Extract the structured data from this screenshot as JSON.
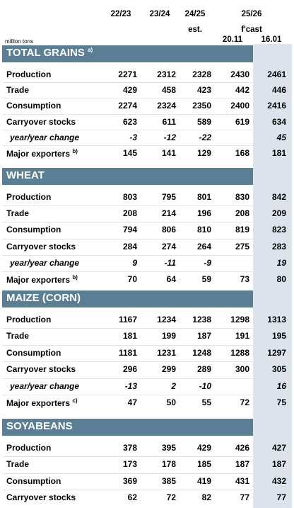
{
  "header": {
    "columns": [
      "22/23",
      "23/24",
      "24/25",
      "25/26"
    ],
    "est": "est.",
    "fcast": "f'cast",
    "dates": [
      "20.11",
      "16.01"
    ],
    "unit": "million tons"
  },
  "sections": [
    {
      "title": "TOTAL GRAINS",
      "note": "a)",
      "rows": [
        {
          "label": "Production",
          "values": [
            "2271",
            "2312",
            "2328",
            "2430",
            "2461"
          ]
        },
        {
          "label": "Trade",
          "values": [
            "429",
            "458",
            "423",
            "442",
            "446"
          ]
        },
        {
          "label": "Consumption",
          "values": [
            "2274",
            "2324",
            "2350",
            "2400",
            "2416"
          ]
        },
        {
          "label": "Carryover stocks",
          "values": [
            "623",
            "611",
            "589",
            "619",
            "634"
          ]
        },
        {
          "label": "year/year change",
          "italic": true,
          "values": [
            "-3",
            "-12",
            "-22",
            "",
            "45"
          ]
        },
        {
          "label": "Major exporters",
          "note": "b)",
          "values": [
            "145",
            "141",
            "129",
            "168",
            "181"
          ]
        }
      ]
    },
    {
      "title": "WHEAT",
      "note": "",
      "rows": [
        {
          "label": "Production",
          "values": [
            "803",
            "795",
            "801",
            "830",
            "842"
          ]
        },
        {
          "label": "Trade",
          "values": [
            "208",
            "214",
            "196",
            "208",
            "209"
          ]
        },
        {
          "label": "Consumption",
          "values": [
            "794",
            "806",
            "810",
            "819",
            "823"
          ]
        },
        {
          "label": "Carryover stocks",
          "values": [
            "284",
            "274",
            "264",
            "275",
            "283"
          ]
        },
        {
          "label": "year/year change",
          "italic": true,
          "values": [
            "9",
            "-11",
            "-9",
            "",
            "19"
          ]
        },
        {
          "label": "Major exporters",
          "note": "b)",
          "values": [
            "70",
            "64",
            "59",
            "73",
            "80"
          ]
        }
      ]
    },
    {
      "title": "MAIZE (CORN)",
      "note": "",
      "rows": [
        {
          "label": "Production",
          "values": [
            "1167",
            "1234",
            "1238",
            "1298",
            "1313"
          ]
        },
        {
          "label": "Trade",
          "values": [
            "181",
            "199",
            "187",
            "191",
            "195"
          ]
        },
        {
          "label": "Consumption",
          "values": [
            "1181",
            "1231",
            "1248",
            "1288",
            "1297"
          ]
        },
        {
          "label": "Carryover stocks",
          "values": [
            "296",
            "299",
            "289",
            "300",
            "305"
          ]
        },
        {
          "label": "year/year change",
          "italic": true,
          "values": [
            "-13",
            "2",
            "-10",
            "",
            "16"
          ]
        },
        {
          "label": "Major exporters",
          "note": "c)",
          "values": [
            "47",
            "50",
            "55",
            "72",
            "75"
          ]
        }
      ]
    },
    {
      "title": "SOYABEANS",
      "note": "",
      "rows": [
        {
          "label": "Production",
          "values": [
            "378",
            "395",
            "429",
            "426",
            "427"
          ]
        },
        {
          "label": "Trade",
          "values": [
            "173",
            "178",
            "185",
            "187",
            "187"
          ]
        },
        {
          "label": "Consumption",
          "values": [
            "369",
            "385",
            "419",
            "431",
            "432"
          ]
        },
        {
          "label": "Carryover stocks",
          "values": [
            "62",
            "72",
            "82",
            "77",
            "77"
          ]
        }
      ]
    }
  ]
}
